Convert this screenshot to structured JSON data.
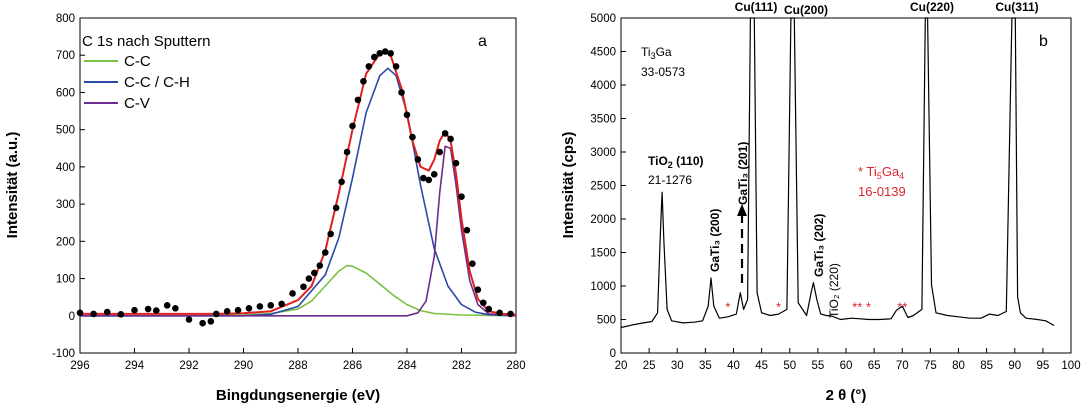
{
  "chart_data": [
    {
      "panel": "a",
      "type": "line",
      "title": "C 1s nach Sputtern",
      "xlabel": "Bingdungsenergie (eV)",
      "ylabel": "Intensität (a.u.)",
      "xlim": [
        296,
        280
      ],
      "ylim": [
        -100,
        800
      ],
      "xticks": [
        "296",
        "294",
        "292",
        "290",
        "288",
        "286",
        "284",
        "282",
        "280"
      ],
      "yticks": [
        "-100",
        "0",
        "100",
        "200",
        "300",
        "400",
        "500",
        "600",
        "700",
        "800"
      ],
      "legend": [
        "C-C",
        "C-C / C-H",
        "C-V"
      ],
      "legend_position": "top-left",
      "colors": {
        "envelope": "#e02020",
        "c_c": "#7ac143",
        "c_c_h": "#2b4aa8",
        "c_v": "#6d2d8c",
        "points": "#000000"
      },
      "series": [
        {
          "name": "C-C",
          "x": [
            296,
            292,
            290,
            289,
            288,
            287.5,
            287,
            286.5,
            286.2,
            286,
            285.5,
            285,
            284.5,
            284,
            283.5,
            283,
            282,
            280
          ],
          "values": [
            0,
            0,
            2,
            6,
            18,
            40,
            80,
            120,
            135,
            133,
            115,
            85,
            55,
            30,
            14,
            6,
            2,
            0
          ]
        },
        {
          "name": "C-C / C-H",
          "x": [
            296,
            290,
            289,
            288,
            287,
            286.5,
            286,
            285.5,
            285,
            284.7,
            284.4,
            284,
            283.5,
            283,
            282.5,
            282,
            281.5,
            281,
            280
          ],
          "values": [
            0,
            0,
            4,
            25,
            110,
            210,
            370,
            545,
            645,
            665,
            645,
            545,
            350,
            180,
            80,
            30,
            10,
            3,
            0
          ]
        },
        {
          "name": "C-V",
          "x": [
            296,
            284,
            283.6,
            283.3,
            283,
            282.8,
            282.6,
            282.4,
            282.2,
            282,
            281.7,
            281.4,
            281,
            280
          ],
          "values": [
            0,
            0,
            8,
            40,
            160,
            330,
            455,
            450,
            350,
            230,
            95,
            30,
            5,
            0
          ]
        },
        {
          "name": "envelope",
          "x": [
            296,
            291,
            290,
            289,
            288,
            287.5,
            287,
            286.5,
            286,
            285.5,
            285,
            284.8,
            284.6,
            284.2,
            283.8,
            283.5,
            283.2,
            283,
            282.8,
            282.6,
            282.4,
            282.2,
            282,
            281.7,
            281.4,
            281,
            280.5,
            280
          ],
          "values": [
            5,
            5,
            7,
            12,
            42,
            80,
            175,
            330,
            500,
            650,
            705,
            710,
            700,
            610,
            470,
            400,
            390,
            420,
            470,
            495,
            470,
            380,
            260,
            120,
            45,
            12,
            5,
            3
          ]
        },
        {
          "name": "data points",
          "x": [
            296,
            295.5,
            295,
            294.5,
            294,
            293.5,
            293.2,
            292.8,
            292.5,
            292,
            291.5,
            291.2,
            291,
            290.6,
            290.2,
            289.8,
            289.4,
            289,
            288.6,
            288.2,
            287.8,
            287.6,
            287.4,
            287.2,
            287,
            286.8,
            286.6,
            286.4,
            286.2,
            286,
            285.8,
            285.6,
            285.4,
            285.2,
            285,
            284.8,
            284.6,
            284.4,
            284.2,
            284,
            283.8,
            283.6,
            283.4,
            283.2,
            283,
            282.8,
            282.6,
            282.4,
            282.2,
            282,
            281.8,
            281.6,
            281.4,
            281.2,
            281,
            280.6,
            280.2
          ],
          "values": [
            8,
            5,
            10,
            4,
            15,
            18,
            14,
            28,
            20,
            -10,
            -20,
            -15,
            5,
            12,
            15,
            20,
            25,
            28,
            32,
            60,
            78,
            100,
            115,
            135,
            170,
            220,
            290,
            360,
            440,
            510,
            580,
            630,
            670,
            695,
            705,
            710,
            705,
            670,
            600,
            540,
            480,
            420,
            370,
            365,
            380,
            440,
            490,
            475,
            410,
            320,
            230,
            140,
            70,
            35,
            18,
            8,
            5
          ]
        }
      ]
    },
    {
      "panel": "b",
      "type": "line",
      "xlabel": "2 θ (°)",
      "ylabel": "Intensität (cps)",
      "xlim": [
        20,
        100
      ],
      "ylim": [
        0,
        5000
      ],
      "xticks": [
        "20",
        "25",
        "30",
        "35",
        "40",
        "45",
        "50",
        "55",
        "60",
        "65",
        "70",
        "75",
        "80",
        "85",
        "90",
        "95",
        "100"
      ],
      "yticks": [
        "0",
        "500",
        "1000",
        "1500",
        "2000",
        "2500",
        "3000",
        "3500",
        "4000",
        "4500",
        "5000"
      ],
      "colors": {
        "trace": "#000000",
        "marker": "#d7262e"
      },
      "series": [
        {
          "name": "XRD",
          "x": [
            20,
            22,
            24,
            25.5,
            26.5,
            27,
            27.3,
            27.6,
            28.2,
            29,
            31,
            33,
            34.5,
            35.5,
            36,
            36.5,
            37.5,
            39,
            40.5,
            41.2,
            41.8,
            42.5,
            43,
            43.3,
            43.7,
            44.2,
            45,
            46.5,
            48,
            49.5,
            50.2,
            50.5,
            50.8,
            51.5,
            53,
            53.8,
            54.2,
            54.8,
            55.5,
            56.5,
            57.5,
            59,
            61,
            62.5,
            64,
            66,
            68,
            69,
            70,
            71,
            72,
            73.5,
            74.1,
            74.5,
            75.2,
            76,
            78,
            80,
            82,
            84,
            85.5,
            87,
            88.5,
            89.5,
            89.8,
            90.1,
            90.5,
            91,
            92,
            94,
            95.5,
            97
          ],
          "values": [
            380,
            420,
            450,
            470,
            600,
            1800,
            2400,
            1700,
            650,
            480,
            450,
            460,
            480,
            700,
            1120,
            700,
            520,
            540,
            580,
            900,
            650,
            800,
            5000,
            5000,
            5000,
            900,
            600,
            560,
            580,
            650,
            5000,
            5000,
            5000,
            750,
            560,
            900,
            1050,
            800,
            580,
            560,
            550,
            500,
            520,
            510,
            500,
            500,
            510,
            640,
            700,
            530,
            560,
            650,
            5000,
            5000,
            1020,
            600,
            560,
            540,
            520,
            520,
            580,
            560,
            620,
            5000,
            5000,
            5000,
            840,
            600,
            520,
            500,
            480,
            410
          ]
        }
      ],
      "annotations": {
        "phase_label": "Ti",
        "phase_sub": "3",
        "phase_suffix": "Ga",
        "phase_card": "33-0573",
        "cu111": "Cu(111)",
        "cu200": "Cu(200)",
        "cu220": "Cu(220)",
        "cu311": "Cu(311)",
        "tio2_main": "TiO",
        "tio2_sub": "2",
        "tio2_hkl": " (110)",
        "tio2_card": "21-1276",
        "gati3_200": "GaTi₃ (200)",
        "gati3_201": "GaTi₃ (201)",
        "gati3_202": "GaTi₃ (202)",
        "tio2_220": "TiO₂ (220)",
        "ti5ga4_prefix": "* Ti",
        "ti5ga4_sub1": "5",
        "ti5ga4_mid": "Ga",
        "ti5ga4_sub2": "4",
        "ti5ga4_card": "16-0139",
        "star_marks": [
          "*",
          "*",
          "**",
          "*",
          "**"
        ],
        "star_positions_2theta": [
          39,
          48,
          62,
          64,
          70
        ]
      }
    }
  ],
  "panel_letters": [
    "a",
    "b"
  ]
}
